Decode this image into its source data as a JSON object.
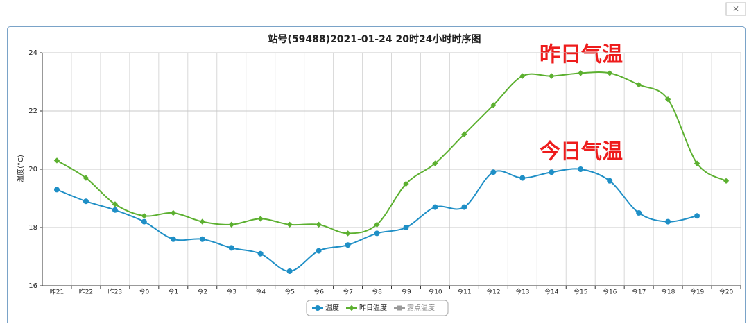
{
  "chart_data": {
    "type": "line",
    "title": "站号(59488)2021-01-24 20时24小时时序图",
    "y_label": "温度(°C)",
    "categories": [
      "昨21",
      "昨22",
      "昨23",
      "今0",
      "今1",
      "今2",
      "今3",
      "今4",
      "今5",
      "今6",
      "今7",
      "今8",
      "今9",
      "今10",
      "今11",
      "今12",
      "今13",
      "今14",
      "今15",
      "今16",
      "今17",
      "今18",
      "今19",
      "今20"
    ],
    "series": [
      {
        "name": "温度",
        "color": "#1f8fc6",
        "marker": "circle",
        "values": [
          19.3,
          18.9,
          18.6,
          18.2,
          17.6,
          17.6,
          17.3,
          17.1,
          16.5,
          17.2,
          17.4,
          17.8,
          18.0,
          18.7,
          18.7,
          19.9,
          19.7,
          19.9,
          20.0,
          19.6,
          18.5,
          18.2,
          18.4,
          null
        ]
      },
      {
        "name": "昨日温度",
        "color": "#5cb030",
        "marker": "diamond",
        "values": [
          20.3,
          19.7,
          18.8,
          18.4,
          18.5,
          18.2,
          18.1,
          18.3,
          18.1,
          18.1,
          17.8,
          18.1,
          19.5,
          20.2,
          21.2,
          22.2,
          23.2,
          23.2,
          23.3,
          23.3,
          22.9,
          22.4,
          20.2,
          19.6
        ]
      },
      {
        "name": "露点温度",
        "color": "#9a9a9a",
        "marker": "square",
        "values": [
          null,
          null,
          null,
          null,
          null,
          null,
          null,
          null,
          null,
          null,
          null,
          null,
          null,
          null,
          null,
          null,
          null,
          null,
          null,
          null,
          null,
          null,
          null,
          null
        ]
      }
    ],
    "ylim": [
      16,
      24
    ],
    "yticks": [
      16,
      18,
      20,
      22,
      24
    ],
    "grid": true,
    "annotations": [
      "昨日气温",
      "今日气温"
    ],
    "annotation_color": "#ee1c1c"
  }
}
